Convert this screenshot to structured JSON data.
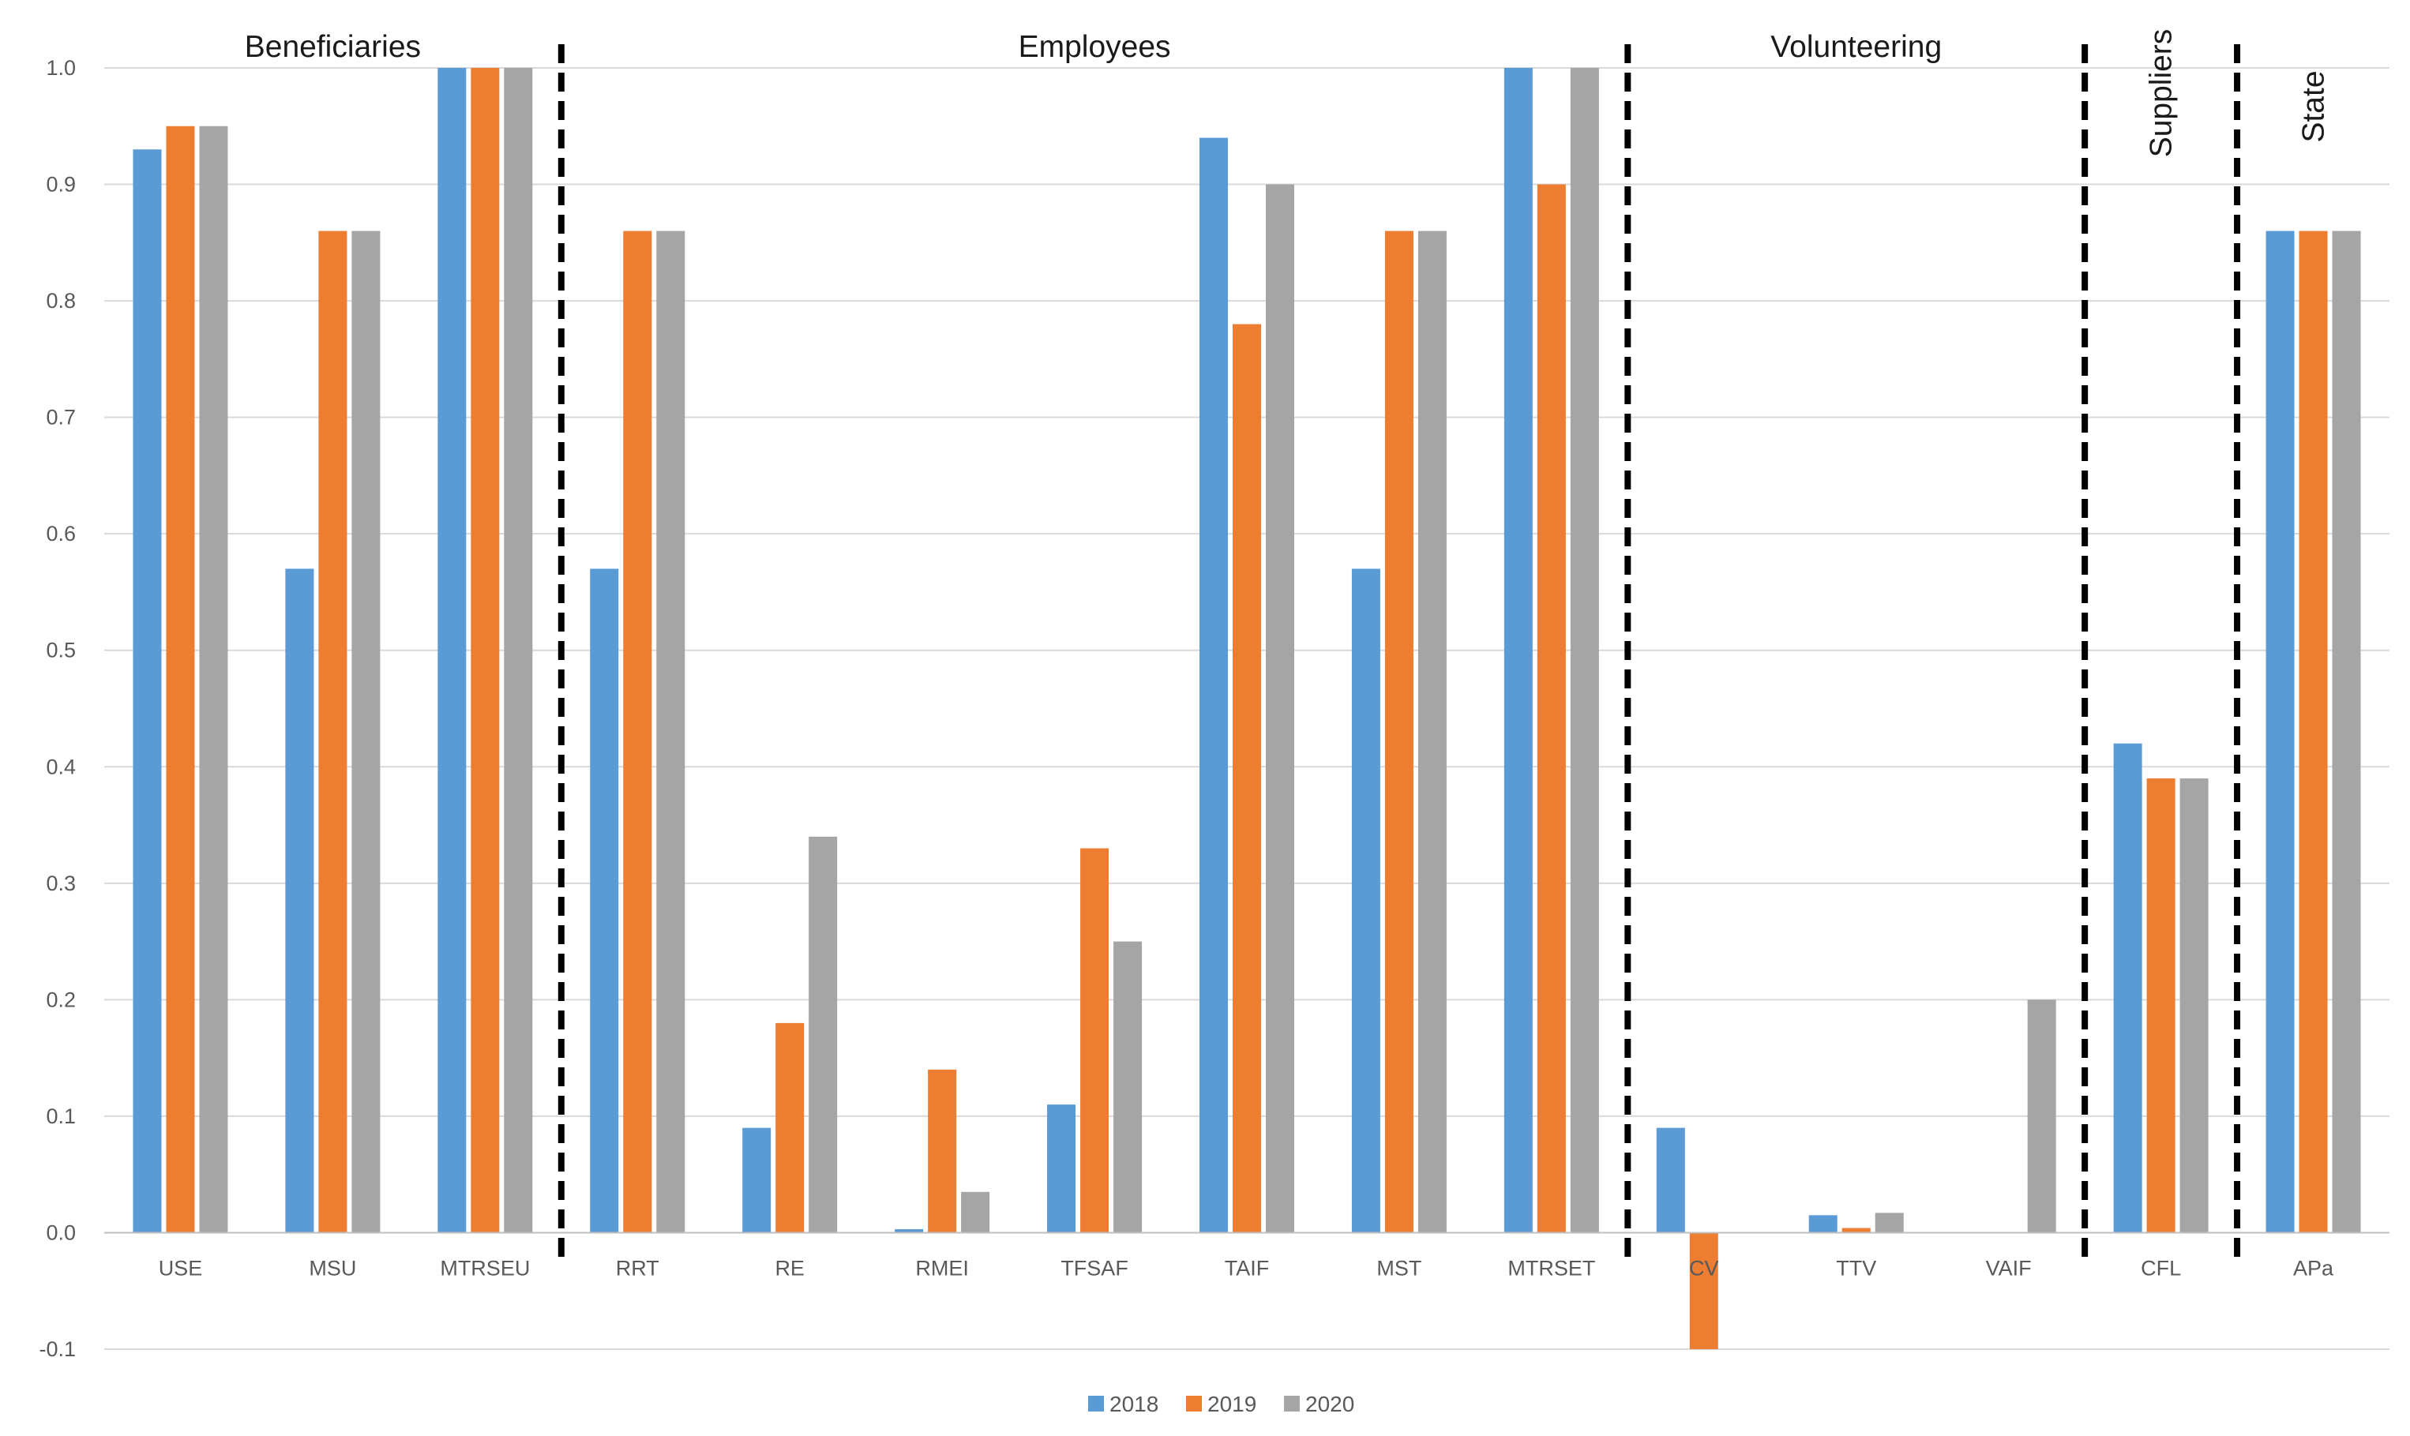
{
  "chart_data": {
    "type": "bar",
    "title": "",
    "xlabel": "",
    "ylabel": "",
    "ylim": [
      -0.1,
      1.0
    ],
    "yticks": [
      "-0.1",
      "0.0",
      "0.1",
      "0.2",
      "0.3",
      "0.4",
      "0.5",
      "0.6",
      "0.7",
      "0.8",
      "0.9",
      "1.0"
    ],
    "grid": true,
    "legend_position": "bottom-center",
    "categories": [
      "USE",
      "MSU",
      "MTRSEU",
      "RRT",
      "RE",
      "RMEI",
      "TFSAF",
      "TAIF",
      "MST",
      "MTRSET",
      "CV",
      "TTV",
      "VAIF",
      "CFL",
      "APa"
    ],
    "series": [
      {
        "name": "2018",
        "color": "#5B9BD5",
        "values": [
          0.93,
          0.57,
          1.0,
          0.57,
          0.09,
          0.003,
          0.11,
          0.94,
          0.57,
          1.0,
          0.09,
          0.015,
          0.0,
          0.42,
          0.86
        ]
      },
      {
        "name": "2019",
        "color": "#ED7D31",
        "values": [
          0.95,
          0.86,
          1.0,
          0.86,
          0.18,
          0.14,
          0.33,
          0.78,
          0.86,
          0.9,
          -0.1,
          0.004,
          0.0,
          0.39,
          0.86
        ]
      },
      {
        "name": "2020",
        "color": "#A5A5A5",
        "values": [
          0.95,
          0.86,
          1.0,
          0.86,
          0.34,
          0.035,
          0.25,
          0.9,
          0.86,
          1.0,
          0.0,
          0.017,
          0.2,
          0.39,
          0.86
        ]
      }
    ],
    "groups": [
      {
        "label": "Beneficiaries",
        "start": 0,
        "end": 2,
        "vertical": false
      },
      {
        "label": "Employees",
        "start": 3,
        "end": 9,
        "vertical": false
      },
      {
        "label": "Volunteering",
        "start": 10,
        "end": 12,
        "vertical": false
      },
      {
        "label": "Suppliers",
        "start": 13,
        "end": 13,
        "vertical": true
      },
      {
        "label": "State",
        "start": 14,
        "end": 14,
        "vertical": true
      }
    ]
  }
}
